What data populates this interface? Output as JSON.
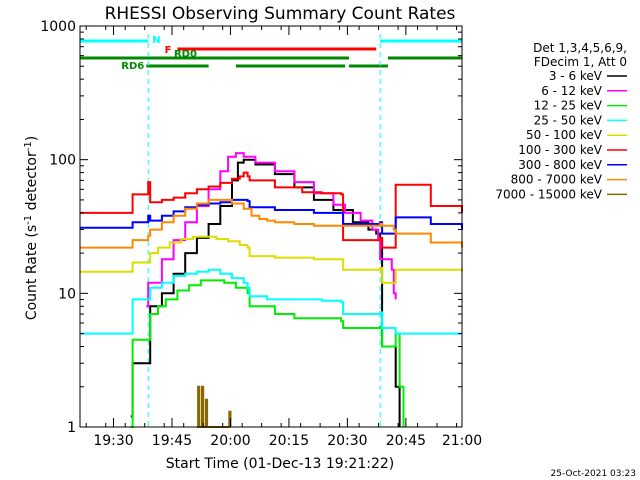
{
  "chart_data": {
    "type": "line",
    "title": "RHESSI Observing Summary Count Rates",
    "xlabel": "Start Time (01-Dec-13 19:21:22)",
    "ylabel_base": "Count Rate (s",
    "ylabel_sup1": "-1",
    "ylabel_mid": " detector",
    "ylabel_sup2": "-1",
    "ylabel_end": ")",
    "x_unit": "minutes after 19:21:22",
    "xlim": [
      0,
      98
    ],
    "ylim": [
      1,
      1000
    ],
    "y_scale": "log",
    "grid": false,
    "x_ticks": [
      {
        "value": 8.6,
        "label": "19:30"
      },
      {
        "value": 23.6,
        "label": "19:45"
      },
      {
        "value": 38.6,
        "label": "20:00"
      },
      {
        "value": 53.6,
        "label": "20:15"
      },
      {
        "value": 68.6,
        "label": "20:30"
      },
      {
        "value": 83.6,
        "label": "20:45"
      },
      {
        "value": 98.6,
        "label": "21:00"
      }
    ],
    "y_ticks": [
      {
        "value": 1,
        "label": "1"
      },
      {
        "value": 10,
        "label": "10"
      },
      {
        "value": 100,
        "label": "100"
      },
      {
        "value": 1000,
        "label": "1000"
      }
    ],
    "legend_header": [
      "Det 1,3,4,5,6,9,",
      "FDecim 1, Att 0"
    ],
    "legend_placement": "right",
    "series": [
      {
        "name": "3 - 6 keV",
        "color": "#000000",
        "x": [
          13,
          13.5,
          17.5,
          18,
          19,
          21,
          24,
          27,
          30,
          33,
          36,
          39,
          40.5,
          42,
          45,
          50,
          55,
          60,
          65,
          70,
          74,
          76,
          77,
          77.5,
          80.5,
          81,
          82
        ],
        "y": [
          1.2,
          3,
          3,
          8,
          8,
          10,
          14,
          20,
          26,
          33,
          45,
          70,
          95,
          100,
          92,
          78,
          62,
          50,
          42,
          34,
          30,
          28,
          25,
          4,
          4,
          2,
          1
        ]
      },
      {
        "name": "6 - 12 keV",
        "color": "#ff00ff",
        "x": [
          17,
          17.5,
          21,
          24,
          27,
          30,
          33,
          36,
          38,
          40,
          42,
          45,
          50,
          55,
          60,
          65,
          68,
          72,
          75,
          76.5,
          77,
          80,
          80.5,
          81
        ],
        "y": [
          8,
          12,
          18,
          25,
          34,
          45,
          60,
          82,
          105,
          112,
          105,
          95,
          82,
          68,
          56,
          46,
          40,
          35,
          30,
          25,
          18,
          15,
          10,
          9
        ]
      },
      {
        "name": "12 - 25 keV",
        "color": "#00ee00",
        "x": [
          13,
          13.5,
          17.5,
          18,
          20,
          22,
          25,
          28,
          31,
          34,
          37,
          40,
          43,
          43.5,
          50,
          55,
          60,
          67,
          67.5,
          75,
          77,
          77.5,
          80.5,
          81,
          82,
          83
        ],
        "y": [
          1,
          4.5,
          4.5,
          7,
          8,
          9,
          10.5,
          11.5,
          12.5,
          12.5,
          12,
          11,
          10,
          8,
          7,
          6.5,
          6.5,
          6.2,
          5.5,
          5.5,
          5.6,
          4,
          4,
          5,
          2,
          1
        ]
      },
      {
        "name": "25 - 50 keV",
        "color": "#00ffff",
        "x": [
          0,
          13,
          13.5,
          17.5,
          18,
          21,
          24,
          27,
          30,
          33,
          36,
          39,
          42,
          43,
          43.5,
          48,
          55,
          62,
          67,
          67.5,
          75,
          77,
          77.5,
          80.5,
          81,
          98
        ],
        "y": [
          5,
          5,
          9,
          9,
          11,
          12,
          13.5,
          14,
          14.5,
          15,
          14,
          13,
          12,
          11,
          9.5,
          9,
          9,
          8.8,
          8.6,
          7,
          7,
          7.2,
          5.5,
          5.5,
          5,
          5
        ]
      },
      {
        "name": "50 - 100 keV",
        "color": "#dddd00",
        "x": [
          0,
          13,
          13.5,
          17.5,
          18,
          20,
          23,
          26,
          29,
          32,
          35,
          38,
          41,
          43,
          43.5,
          50,
          60,
          67,
          67.5,
          75,
          77,
          77.5,
          80.5,
          81,
          98
        ],
        "y": [
          14.5,
          14.5,
          17,
          17,
          20,
          22,
          24,
          25.5,
          26.5,
          26.5,
          25.5,
          24.5,
          23,
          22,
          19,
          18.5,
          18,
          18,
          15,
          15,
          15.5,
          12,
          12,
          15,
          14.5
        ]
      },
      {
        "name": "100 - 300 keV",
        "color": "#ff0000",
        "x": [
          0,
          13,
          13.5,
          17.5,
          18,
          21,
          24,
          27,
          30,
          33,
          36,
          39,
          41,
          42,
          43,
          43.5,
          50,
          57,
          62,
          67,
          67.5,
          75,
          77,
          77.5,
          80.5,
          81,
          90,
          98
        ],
        "y": [
          40,
          40,
          55,
          68,
          48,
          50,
          52,
          56,
          60,
          63,
          67,
          72,
          75,
          80,
          75,
          70,
          62,
          57,
          56,
          55,
          25,
          25,
          26,
          22,
          22,
          65,
          45,
          40
        ]
      },
      {
        "name": "300 - 800 keV",
        "color": "#0000ff",
        "x": [
          0,
          13,
          13.5,
          17.5,
          18,
          21,
          24,
          27,
          30,
          33,
          36,
          39,
          41,
          43,
          43.5,
          50,
          60,
          67,
          67.5,
          75,
          77,
          77.5,
          80.5,
          81,
          90,
          98
        ],
        "y": [
          31,
          31,
          34,
          38,
          35,
          38,
          41,
          44,
          46,
          47,
          48,
          50,
          50,
          49,
          44,
          42,
          40,
          40,
          33,
          33,
          34,
          28,
          28,
          37,
          33,
          30
        ]
      },
      {
        "name": "800 - 7000 keV",
        "color": "#ff8800",
        "x": [
          0,
          13,
          13.5,
          17.5,
          18,
          21,
          24,
          27,
          30,
          33,
          36,
          39,
          42,
          44,
          46,
          48,
          50,
          55,
          60,
          67,
          67.5,
          75,
          77,
          77.5,
          80.5,
          81,
          90,
          98
        ],
        "y": [
          22,
          22,
          25,
          27,
          30,
          34,
          38,
          43,
          47,
          50,
          50,
          47,
          43,
          38,
          36,
          35,
          34,
          33,
          32,
          32,
          32,
          32,
          33,
          32,
          30,
          28,
          24,
          22
        ]
      },
      {
        "name": "7000 - 15000 keV",
        "color": "#886600",
        "x": [
          30,
          30.3,
          30.6,
          31,
          31.3,
          31.6,
          32,
          32.3,
          32.6,
          38,
          38.3,
          38.6
        ],
        "y": [
          1,
          2,
          1,
          1,
          2,
          1,
          1,
          1.6,
          1,
          1,
          1.3,
          1
        ]
      }
    ],
    "attenuator_lines": [
      0,
      17.5,
      77,
      98
    ],
    "flag_bars": [
      {
        "label": "N",
        "color": "#00ffff",
        "x_start": 0,
        "x_end": 17.5,
        "level": 1
      },
      {
        "label": "",
        "color": "#00ffff",
        "x_start": 77,
        "x_end": 98,
        "level": 1
      },
      {
        "label": "F",
        "color": "#ff0000",
        "x_start": 25,
        "x_end": 76,
        "level": 2
      },
      {
        "label": "RD0",
        "color": "#008800",
        "x_start": 0,
        "x_end": 69,
        "level": 3
      },
      {
        "label": "",
        "color": "#008800",
        "x_start": 79,
        "x_end": 98,
        "level": 3
      },
      {
        "label": "RD6",
        "color": "#008800",
        "x_start": 17,
        "x_end": 33,
        "level": 4
      },
      {
        "label": "",
        "color": "#008800",
        "x_start": 40,
        "x_end": 68,
        "level": 4
      },
      {
        "label": "",
        "color": "#008800",
        "x_start": 69,
        "x_end": 79,
        "level": 4
      }
    ],
    "footer_stamp": "25-Oct-2021 03:23"
  }
}
